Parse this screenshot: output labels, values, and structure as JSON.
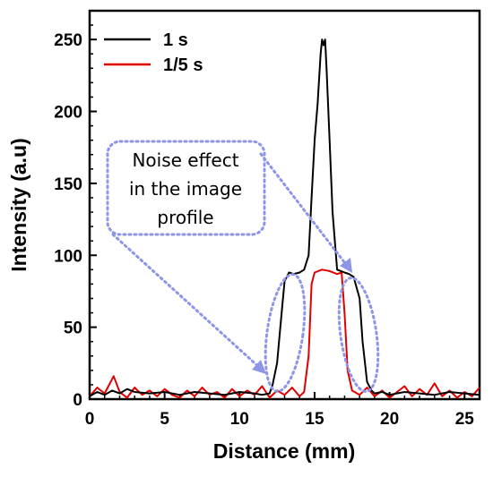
{
  "chart_data": {
    "type": "line",
    "title": "",
    "xlabel": "Distance (mm)",
    "ylabel": "Intensity (a.u)",
    "xlim": [
      0,
      26
    ],
    "ylim": [
      0,
      270
    ],
    "xticks": [
      0,
      5,
      10,
      15,
      20,
      25
    ],
    "yticks": [
      0,
      50,
      100,
      150,
      200,
      250
    ],
    "xtick_labels": [
      "0",
      "5",
      "10",
      "15",
      "20",
      "25"
    ],
    "ytick_labels": [
      "0",
      "50",
      "100",
      "150",
      "200",
      "250"
    ],
    "grid": false,
    "legend_position": "top-left",
    "series": [
      {
        "name": "1 s",
        "color": "#000000",
        "x": [
          0,
          0.5,
          1,
          1.5,
          2,
          2.5,
          3,
          4,
          5,
          6,
          7,
          8,
          9,
          10,
          11,
          11.5,
          12,
          12.2,
          12.5,
          12.8,
          13,
          13.3,
          13.6,
          14,
          14.3,
          14.6,
          14.8,
          15,
          15.2,
          15.4,
          15.5,
          15.6,
          15.7,
          15.8,
          16,
          16.2,
          16.5,
          17,
          17.3,
          17.6,
          18,
          18.2,
          18.5,
          18.8,
          19,
          19.5,
          20,
          21,
          22,
          23,
          24,
          25,
          26
        ],
        "y": [
          2,
          5,
          3,
          6,
          4,
          7,
          5,
          4,
          5,
          3,
          5,
          4,
          3,
          5,
          4,
          3,
          4,
          10,
          25,
          60,
          82,
          88,
          87,
          88,
          90,
          100,
          140,
          180,
          205,
          240,
          250,
          246,
          250,
          230,
          180,
          130,
          90,
          88,
          87,
          85,
          70,
          40,
          12,
          6,
          4,
          5,
          3,
          5,
          4,
          3,
          5,
          4,
          3
        ]
      },
      {
        "name": "1/5 s",
        "color": "#e00000",
        "x": [
          0,
          0.5,
          1,
          1.3,
          1.6,
          2,
          2.5,
          3,
          3.5,
          4,
          4.5,
          5,
          5.5,
          6,
          6.5,
          7,
          7.5,
          8,
          8.5,
          9,
          9.5,
          10,
          10.5,
          11,
          11.5,
          12,
          12.5,
          13,
          13.5,
          14,
          14.3,
          14.6,
          14.8,
          15,
          15.5,
          16,
          16.5,
          16.8,
          17,
          17.2,
          17.5,
          18,
          18.5,
          19,
          19.5,
          20,
          20.5,
          21,
          21.5,
          22,
          22.5,
          23,
          23.5,
          24,
          24.5,
          25,
          25.5,
          26
        ],
        "y": [
          2,
          8,
          4,
          10,
          16,
          5,
          1,
          8,
          3,
          6,
          2,
          7,
          3,
          1,
          6,
          2,
          8,
          3,
          5,
          1,
          7,
          2,
          6,
          3,
          9,
          1,
          6,
          3,
          8,
          2,
          5,
          30,
          80,
          88,
          90,
          89,
          87,
          88,
          60,
          20,
          6,
          3,
          8,
          2,
          6,
          1,
          5,
          9,
          2,
          7,
          3,
          11,
          2,
          6,
          1,
          5,
          2,
          8
        ]
      }
    ],
    "annotations": [
      {
        "text_lines": [
          "Noise effect",
          "in the image",
          "profile"
        ]
      }
    ]
  }
}
